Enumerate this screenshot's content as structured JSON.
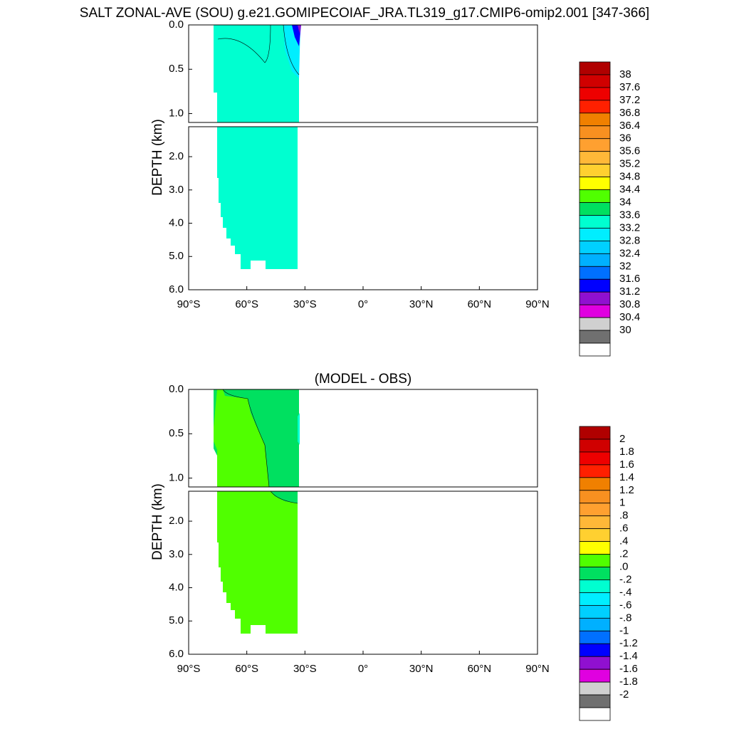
{
  "title": "SALT ZONAL-AVE (SOU) g.e21.GOMIPECOIAF_JRA.TL319_g17.CMIP6-omip2.001 [347-366]",
  "panels": [
    {
      "type": "contour",
      "ylabel": "DEPTH (km)",
      "yticks": [
        {
          "value": 0,
          "label": "0.0"
        },
        {
          "value": 0.5,
          "label": "0.5"
        },
        {
          "value": 1,
          "label": "1.0"
        },
        {
          "value": 2,
          "label": "2.0"
        },
        {
          "value": 3,
          "label": "3.0"
        },
        {
          "value": 4,
          "label": "4.0"
        },
        {
          "value": 5,
          "label": "5.0"
        },
        {
          "value": 6,
          "label": "6.0"
        }
      ],
      "xlim": [
        -90,
        90
      ],
      "xticks": [
        {
          "value": -90,
          "label": "90°S"
        },
        {
          "value": -60,
          "label": "60°S"
        },
        {
          "value": -30,
          "label": "30°S"
        },
        {
          "value": 0,
          "label": "0°"
        },
        {
          "value": 30,
          "label": "30°N"
        },
        {
          "value": 60,
          "label": "60°N"
        },
        {
          "value": 90,
          "label": "90°N"
        }
      ],
      "colorbar": {
        "labels": [
          38,
          37.6,
          37.2,
          36.8,
          36.4,
          36,
          35.6,
          35.2,
          34.8,
          34.4,
          34,
          33.6,
          33.2,
          32.8,
          32.4,
          32,
          31.6,
          31.2,
          30.8,
          30.4,
          30
        ],
        "colors": [
          "#b00000",
          "#d00000",
          "#ee0000",
          "#ff2000",
          "#f08000",
          "#f89020",
          "#ffa030",
          "#ffb838",
          "#ffd030",
          "#ffff00",
          "#50ff00",
          "#00e060",
          "#00ffd0",
          "#00eeff",
          "#00d0ff",
          "#00b0ff",
          "#0070ff",
          "#0000ff",
          "#9010d0",
          "#e000e0",
          "#d0d0d0",
          "#707070",
          "#ffffff"
        ]
      }
    },
    {
      "type": "contour",
      "subtitle": "(MODEL - OBS)",
      "ylabel": "DEPTH (km)",
      "yticks": [
        {
          "value": 0,
          "label": "0.0"
        },
        {
          "value": 0.5,
          "label": "0.5"
        },
        {
          "value": 1,
          "label": "1.0"
        },
        {
          "value": 2,
          "label": "2.0"
        },
        {
          "value": 3,
          "label": "3.0"
        },
        {
          "value": 4,
          "label": "4.0"
        },
        {
          "value": 5,
          "label": "5.0"
        },
        {
          "value": 6,
          "label": "6.0"
        }
      ],
      "xlim": [
        -90,
        90
      ],
      "xticks": [
        {
          "value": -90,
          "label": "90°S"
        },
        {
          "value": -60,
          "label": "60°S"
        },
        {
          "value": -30,
          "label": "30°S"
        },
        {
          "value": 0,
          "label": "0°"
        },
        {
          "value": 30,
          "label": "30°N"
        },
        {
          "value": 60,
          "label": "60°N"
        },
        {
          "value": 90,
          "label": "90°N"
        }
      ],
      "colorbar": {
        "labels": [
          2,
          1.8,
          1.6,
          1.4,
          1.2,
          1,
          {
            "value": 0.8,
            "label": ".8"
          },
          {
            "value": 0.6,
            "label": ".6"
          },
          {
            "value": 0.4,
            "label": ".4"
          },
          {
            "value": 0.2,
            "label": ".2"
          },
          {
            "value": 0,
            "label": ".0"
          },
          {
            "value": -0.2,
            "label": "-.2"
          },
          {
            "value": -0.4,
            "label": "-.4"
          },
          {
            "value": -0.6,
            "label": "-.6"
          },
          {
            "value": -0.8,
            "label": "-.8"
          },
          -1,
          -1.2,
          -1.4,
          -1.6,
          -1.8,
          -2
        ],
        "colors": [
          "#b00000",
          "#d00000",
          "#ee0000",
          "#ff2000",
          "#f08000",
          "#f89020",
          "#ffa030",
          "#ffb838",
          "#ffd030",
          "#ffff00",
          "#50ff00",
          "#00e060",
          "#00ffd0",
          "#00eeff",
          "#00d0ff",
          "#00b0ff",
          "#0070ff",
          "#0000ff",
          "#9010d0",
          "#e000e0",
          "#d0d0d0",
          "#707070",
          "#ffffff"
        ]
      }
    }
  ]
}
